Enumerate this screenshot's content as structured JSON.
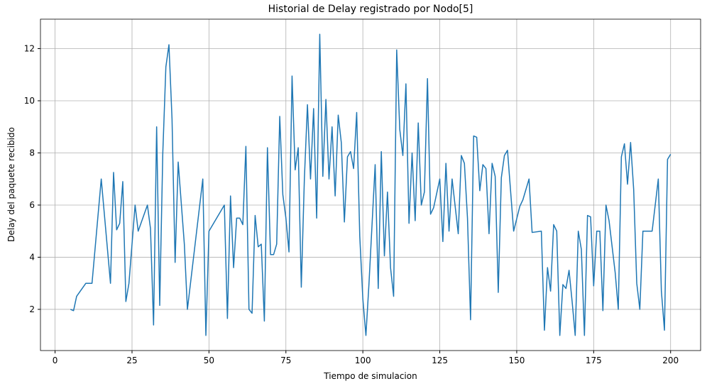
{
  "chart_data": {
    "type": "line",
    "title": "Historial de Delay registrado por Nodo[5]",
    "x_label": "Tiempo de simulacion",
    "y_label": "Delay del paquete recibido",
    "x": [
      5,
      6,
      7,
      10,
      12,
      15,
      18,
      19,
      20,
      21,
      22,
      23,
      24,
      26,
      27,
      30,
      31,
      32,
      33,
      34,
      35,
      36,
      37,
      38,
      39,
      40,
      42,
      43,
      45,
      46,
      48,
      49,
      50,
      55,
      56,
      57,
      58,
      59,
      60,
      61,
      62,
      63,
      64,
      65,
      66,
      67,
      68,
      69,
      70,
      71,
      72,
      73,
      74,
      75,
      76,
      77,
      78,
      79,
      80,
      81,
      82,
      83,
      84,
      85,
      86,
      87,
      88,
      89,
      90,
      91,
      92,
      93,
      94,
      95,
      96,
      97,
      98,
      99,
      100,
      101,
      102,
      104,
      105,
      106,
      107,
      108,
      109,
      110,
      111,
      112,
      113,
      114,
      115,
      116,
      117,
      118,
      119,
      120,
      121,
      122,
      123,
      125,
      126,
      127,
      128,
      129,
      131,
      132,
      133,
      134,
      135,
      136,
      137,
      138,
      139,
      140,
      141,
      142,
      143,
      144,
      145,
      146,
      147,
      149,
      151,
      152,
      154,
      155,
      158,
      159,
      160,
      161,
      162,
      163,
      164,
      165,
      166,
      167,
      168,
      169,
      170,
      171,
      172,
      173,
      174,
      175,
      176,
      177,
      178,
      179,
      180,
      182,
      183,
      184,
      185,
      186,
      187,
      188,
      189,
      190,
      191,
      193,
      194,
      196,
      197,
      198,
      199,
      200
    ],
    "series": [
      {
        "name": "Delay",
        "color": "#1f77b4",
        "values": [
          2.0,
          1.95,
          2.5,
          3.0,
          3.0,
          7.0,
          3.0,
          7.25,
          5.05,
          5.3,
          6.9,
          2.3,
          3.0,
          6.0,
          5.0,
          6.0,
          5.1,
          1.4,
          9.0,
          2.15,
          8.0,
          11.3,
          12.15,
          9.3,
          3.8,
          7.65,
          4.5,
          2.0,
          4.0,
          5.0,
          7.0,
          1.0,
          5.0,
          6.0,
          1.65,
          6.35,
          3.6,
          5.5,
          5.5,
          5.25,
          8.25,
          2.0,
          1.85,
          5.6,
          4.4,
          4.5,
          1.55,
          8.2,
          4.1,
          4.1,
          4.5,
          9.4,
          6.4,
          5.5,
          4.2,
          10.95,
          7.35,
          8.2,
          2.85,
          7.0,
          9.85,
          7.0,
          9.7,
          5.5,
          12.55,
          7.1,
          10.05,
          7.0,
          9.0,
          6.35,
          9.45,
          8.4,
          5.35,
          7.85,
          8.05,
          7.4,
          9.55,
          4.8,
          2.4,
          1.0,
          3.0,
          7.55,
          2.8,
          8.05,
          4.05,
          6.5,
          3.6,
          2.5,
          11.95,
          8.9,
          7.9,
          10.65,
          5.3,
          8.0,
          5.4,
          9.15,
          6.0,
          6.5,
          10.85,
          5.65,
          5.9,
          7.0,
          4.6,
          7.6,
          5.0,
          7.0,
          4.9,
          7.9,
          7.6,
          5.5,
          1.6,
          8.65,
          8.6,
          6.55,
          7.55,
          7.4,
          4.9,
          7.6,
          7.1,
          2.65,
          7.05,
          7.9,
          8.1,
          5.0,
          5.95,
          6.2,
          7.0,
          4.95,
          5.0,
          1.2,
          3.6,
          2.7,
          5.25,
          5.0,
          1.0,
          2.95,
          2.8,
          3.5,
          2.3,
          1.0,
          5.0,
          4.3,
          1.0,
          5.6,
          5.55,
          2.9,
          5.0,
          5.0,
          1.95,
          6.0,
          5.4,
          3.4,
          2.0,
          7.85,
          8.35,
          6.8,
          8.4,
          6.6,
          3.0,
          2.0,
          5.0,
          5.0,
          5.0,
          7.0,
          2.7,
          1.2,
          7.75,
          7.95
        ]
      }
    ],
    "xlim": [
      -4.75,
      209.75
    ],
    "xticks": [
      0,
      25,
      50,
      75,
      100,
      125,
      150,
      175,
      200
    ],
    "ylim": [
      0.42,
      13.13
    ],
    "yticks": [
      2,
      4,
      6,
      8,
      10,
      12
    ],
    "grid": true
  }
}
